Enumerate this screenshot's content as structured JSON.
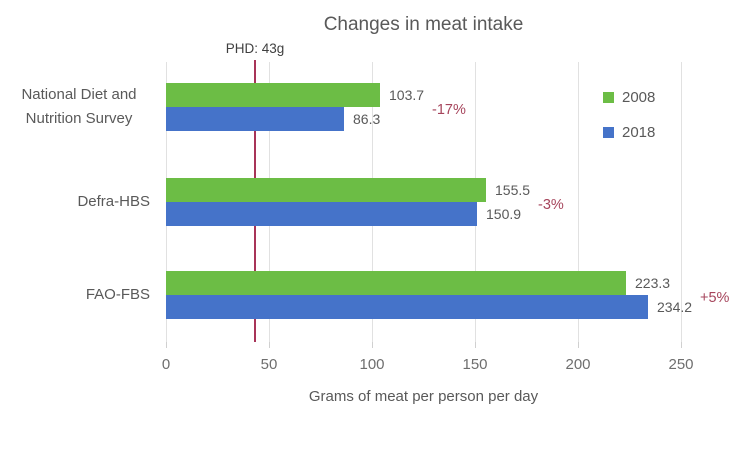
{
  "chart": {
    "title": "Changes in meat intake",
    "xlabel": "Grams of meat per person per day",
    "annotation_label": "PHD: 43g"
  },
  "chart_data": {
    "type": "bar",
    "orientation": "horizontal",
    "title": "Changes in meat intake",
    "xlabel": "Grams of meat per person per day",
    "ylabel": "",
    "xlim": [
      0,
      250
    ],
    "x_ticks": [
      0,
      50,
      100,
      150,
      200,
      250
    ],
    "grid": true,
    "legend_position": "right-top",
    "categories": [
      "National Diet and Nutrition Survey",
      "Defra-HBS",
      "FAO-FBS"
    ],
    "category_lines": [
      [
        "National Diet and",
        "Nutrition Survey"
      ],
      [
        "Defra-HBS"
      ],
      [
        "FAO-FBS"
      ]
    ],
    "series": [
      {
        "name": "2008",
        "color": "#6cbd45",
        "values": [
          103.7,
          155.5,
          223.3
        ]
      },
      {
        "name": "2018",
        "color": "#4573c9",
        "values": [
          86.3,
          150.9,
          234.2
        ]
      }
    ],
    "value_labels": [
      [
        "103.7",
        "86.3"
      ],
      [
        "155.5",
        "150.9"
      ],
      [
        "223.3",
        "234.2"
      ]
    ],
    "change_labels": [
      "-17%",
      "-3%",
      "+5%"
    ],
    "reference_line": {
      "label": "PHD: 43g",
      "x": 43,
      "color": "#a83458"
    },
    "colors": {
      "series_2008": "#6cbd45",
      "series_2018": "#4573c9",
      "change_text": "#a6455c",
      "reference_line": "#a83458",
      "text": "#595959",
      "grid": "#e1e1e1"
    }
  }
}
